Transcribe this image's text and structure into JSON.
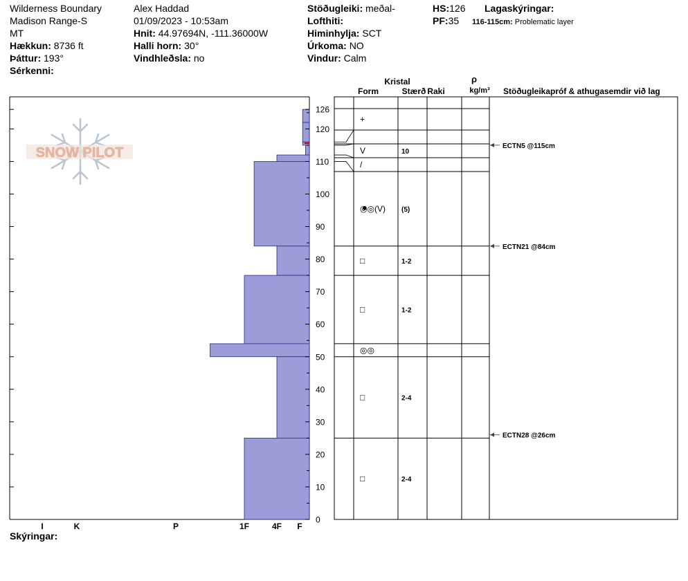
{
  "header": {
    "location_line1": "Wilderness Boundary",
    "location_line2": "Madison Range-S",
    "state": "MT",
    "elevation_label": "Hækkun:",
    "elevation_value": "8736 ft",
    "aspect_label": "Þáttur:",
    "aspect_value": "193°",
    "features_label": "Sérkenni:",
    "observer": "Alex Haddad",
    "datetime": "01/09/2023 - 10:53am",
    "coords_label": "Hnit:",
    "coords_value": "44.97694N, -111.36000W",
    "slope_label": "Halli horn:",
    "slope_value": "30°",
    "wind_loading_label": "Vindhleðsla:",
    "wind_loading_value": "no",
    "stability_label": "Stöðugleiki:",
    "stability_value": "meðal-",
    "air_temp_label": "Lofthiti:",
    "sky_label": "Himinhylja:",
    "sky_value": "SCT",
    "precip_label": "Úrkoma:",
    "precip_value": "NO",
    "wind_label": "Vindur:",
    "wind_value": "Calm",
    "hs_label": "HS:",
    "hs_value": "126",
    "pf_label": "PF:",
    "pf_value": "35",
    "layer_notes_label": "Lagaskýringar:",
    "layer_note_range": "116-115cm:",
    "layer_note_text": "Problematic layer"
  },
  "footer": {
    "notes_label": "Skýringar:"
  },
  "logo": {
    "text": "SNOW PILOT"
  },
  "columns": {
    "crystal": "Kristal",
    "form": "Form",
    "size": "Stærð",
    "moisture": "Raki",
    "density_symbol": "ρ",
    "density_unit": "kg/m³",
    "tests": "Stöðugleikapróf & athugasemdir við lag"
  },
  "chart_data": {
    "type": "bar",
    "xlabel": "",
    "ylabel": "",
    "ylim": [
      0,
      130
    ],
    "y_ticks": [
      0,
      10,
      20,
      30,
      40,
      50,
      60,
      70,
      80,
      90,
      100,
      110,
      120,
      126
    ],
    "hardness_scale": [
      "I",
      "K",
      "P",
      "1F",
      "4F",
      "F"
    ],
    "hardness_levels": {
      "I": 1,
      "K": 2,
      "P": 3,
      "1F": 4,
      "4F": 5,
      "F": 6
    },
    "layers": [
      {
        "bottom": 122,
        "top": 126,
        "hardness_level": 6.3
      },
      {
        "bottom": 116,
        "top": 122,
        "hardness_level": 6.3,
        "form": "+"
      },
      {
        "bottom": 115,
        "top": 116,
        "hardness_level": 6.3
      },
      {
        "bottom": 112,
        "top": 115,
        "hardness_level": 6.6,
        "form": "V",
        "size": "10"
      },
      {
        "bottom": 110,
        "top": 112,
        "hardness_level": 5.0,
        "form": "/"
      },
      {
        "bottom": 84,
        "top": 110,
        "hardness_level": 4.3,
        "form": "◎◎(V)",
        "size": "(5)"
      },
      {
        "bottom": 75,
        "top": 84,
        "hardness_level": 5.0,
        "form": "□",
        "size": "1-2"
      },
      {
        "bottom": 54,
        "top": 75,
        "hardness_level": 4.0,
        "form": "□",
        "size": "1-2"
      },
      {
        "bottom": 50,
        "top": 54,
        "hardness_level": 3.5,
        "form": "◎◎"
      },
      {
        "bottom": 25,
        "top": 50,
        "hardness_level": 5.0,
        "form": "□",
        "size": "2-4"
      },
      {
        "bottom": 0,
        "top": 25,
        "hardness_level": 4.0,
        "form": "□",
        "size": "2-4"
      }
    ],
    "marks": [
      {
        "height": 96,
        "form": "●"
      }
    ],
    "stability_tests": [
      {
        "label": "ECTN5 @115cm",
        "height": 115
      },
      {
        "label": "ECTN21 @84cm",
        "height": 84
      },
      {
        "label": "ECTN28 @26cm",
        "height": 26
      }
    ]
  },
  "colors": {
    "layer_fill": "#9c9cd8",
    "layer_stroke": "#2a2a8a",
    "accent_red": "#cc0000",
    "logo_text": "#e8b8a6",
    "logo_flake": "#b8c6d2"
  }
}
